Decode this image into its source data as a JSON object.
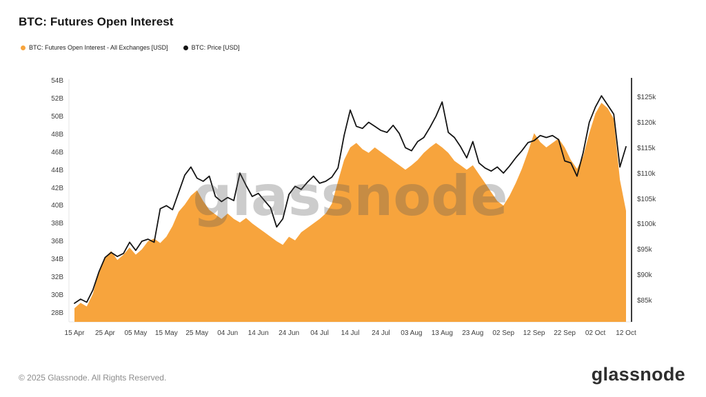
{
  "page": {
    "title": "BTC: Futures Open Interest",
    "watermark": "glassnode",
    "footer": {
      "copyright": "© 2025 Glassnode. All Rights Reserved.",
      "brand": "glassnode"
    }
  },
  "legend": {
    "items": [
      {
        "label": "BTC: Futures Open Interest - All Exchanges [USD]",
        "color": "#f7a43d"
      },
      {
        "label": "BTC: Price [USD]",
        "color": "#141414"
      }
    ]
  },
  "chart_data": {
    "type": "area+line",
    "title": "BTC: Futures Open Interest",
    "grid": false,
    "legend_position": "top-left",
    "x_unit": "date (2025), days since 15 Apr",
    "x_max_day": 180,
    "x_tick_days": [
      0,
      10,
      20,
      30,
      40,
      50,
      60,
      70,
      80,
      90,
      100,
      110,
      120,
      130,
      140,
      150,
      160,
      170,
      180
    ],
    "x_tick_labels": [
      "15 Apr",
      "25 Apr",
      "05 May",
      "15 May",
      "25 May",
      "04 Jun",
      "14 Jun",
      "24 Jun",
      "04 Jul",
      "14 Jul",
      "24 Jul",
      "03 Aug",
      "13 Aug",
      "23 Aug",
      "02 Sep",
      "12 Sep",
      "22 Sep",
      "02 Oct",
      "12 Oct"
    ],
    "left_axis": {
      "min": 28,
      "max": 54,
      "unit": "B USD",
      "tick_values": [
        28,
        30,
        32,
        34,
        36,
        38,
        40,
        42,
        44,
        46,
        48,
        50,
        52,
        54
      ],
      "tick_labels": [
        "28B",
        "30B",
        "32B",
        "34B",
        "36B",
        "38B",
        "40B",
        "42B",
        "44B",
        "46B",
        "48B",
        "50B",
        "52B",
        "54B"
      ]
    },
    "right_axis": {
      "min": 85,
      "max": 125,
      "unit": "k USD",
      "tick_values": [
        85,
        90,
        95,
        100,
        105,
        110,
        115,
        120,
        125
      ],
      "tick_labels": [
        "$85k",
        "$90k",
        "$95k",
        "$100k",
        "$105k",
        "$110k",
        "$115k",
        "$120k",
        "$125k"
      ]
    },
    "x_days": [
      0,
      2,
      4,
      6,
      8,
      10,
      12,
      14,
      16,
      18,
      20,
      22,
      24,
      26,
      28,
      30,
      32,
      34,
      36,
      38,
      40,
      42,
      44,
      46,
      48,
      50,
      52,
      54,
      56,
      58,
      60,
      62,
      64,
      66,
      68,
      70,
      72,
      74,
      76,
      78,
      80,
      82,
      84,
      86,
      88,
      90,
      92,
      94,
      96,
      98,
      100,
      102,
      104,
      106,
      108,
      110,
      112,
      114,
      116,
      118,
      120,
      122,
      124,
      126,
      128,
      130,
      132,
      134,
      136,
      138,
      140,
      142,
      144,
      146,
      148,
      150,
      152,
      154,
      156,
      158,
      160,
      162,
      164,
      166,
      168,
      170,
      172,
      174,
      176,
      178,
      180
    ],
    "series": [
      {
        "name": "BTC: Futures Open Interest - All Exchanges [USD]",
        "type": "area",
        "axis": "left",
        "color": "#f7a43d",
        "values": [
          28.6,
          29.2,
          28.8,
          30.2,
          32.8,
          34.3,
          35.0,
          34.0,
          34.6,
          35.4,
          34.6,
          35.2,
          36.1,
          36.4,
          35.9,
          36.6,
          37.8,
          39.4,
          40.2,
          41.2,
          41.8,
          40.6,
          39.6,
          39.1,
          38.6,
          39.2,
          38.6,
          38.2,
          38.7,
          38.1,
          37.6,
          37.1,
          36.6,
          36.1,
          35.7,
          36.6,
          36.2,
          37.1,
          37.6,
          38.1,
          38.6,
          39.2,
          40.3,
          42.8,
          45.2,
          46.6,
          47.1,
          46.4,
          46.0,
          46.6,
          46.1,
          45.6,
          45.1,
          44.6,
          44.1,
          44.6,
          45.2,
          46.0,
          46.6,
          47.1,
          46.6,
          46.0,
          45.1,
          44.6,
          44.1,
          44.6,
          43.6,
          42.6,
          41.6,
          40.6,
          40.1,
          41.2,
          42.6,
          44.2,
          46.1,
          48.2,
          47.2,
          46.6,
          47.1,
          47.6,
          46.6,
          45.2,
          44.2,
          45.6,
          48.2,
          50.4,
          51.6,
          51.0,
          49.8,
          43.0,
          39.5
        ]
      },
      {
        "name": "BTC: Price [USD]",
        "type": "line",
        "axis": "right",
        "color": "#141414",
        "values": [
          84.6,
          85.4,
          84.8,
          87.2,
          90.8,
          93.6,
          94.6,
          93.8,
          94.4,
          96.6,
          95.0,
          96.8,
          97.2,
          96.6,
          103.2,
          103.8,
          103.0,
          106.4,
          109.8,
          111.4,
          109.2,
          108.6,
          109.6,
          105.6,
          104.6,
          105.4,
          104.8,
          110.2,
          107.8,
          105.6,
          106.2,
          104.8,
          103.4,
          99.6,
          101.2,
          106.0,
          107.6,
          107.0,
          108.4,
          109.6,
          108.2,
          108.6,
          109.4,
          111.2,
          117.6,
          122.6,
          119.4,
          119.0,
          120.2,
          119.4,
          118.6,
          118.2,
          119.6,
          118.0,
          115.2,
          114.6,
          116.4,
          117.2,
          119.2,
          121.4,
          124.2,
          118.2,
          117.2,
          115.4,
          113.2,
          116.4,
          112.2,
          111.2,
          110.6,
          111.4,
          110.2,
          111.6,
          113.2,
          114.6,
          116.2,
          116.6,
          117.6,
          117.2,
          117.6,
          116.8,
          112.6,
          112.2,
          109.6,
          114.2,
          120.2,
          123.2,
          125.4,
          123.6,
          121.8,
          111.4,
          115.4
        ]
      }
    ]
  }
}
